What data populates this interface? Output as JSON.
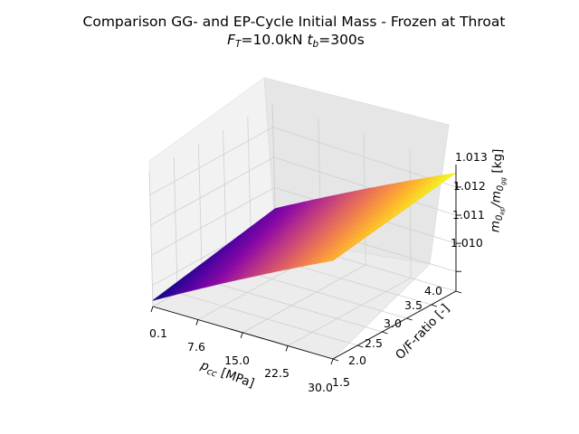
{
  "chart_data": {
    "type": "surface",
    "title": "Comparison GG- and EP-Cycle Initial Mass - Frozen at Throat",
    "subtitle": {
      "f_sym": "F",
      "f_sub": "T",
      "f_rest": "=10.0kN ",
      "t_sym": "t",
      "t_sub": "b",
      "t_rest": "=300s"
    },
    "xlabel": {
      "sym": "p",
      "sub": "cc",
      "unit": " [MPa]"
    },
    "ylabel": "O/F-ratio [-]",
    "zlabel": {
      "a": "m",
      "a_sub": "0",
      "a_subsub": "ep",
      "b": "/m",
      "b_sub": "0",
      "b_subsub": "gg",
      "unit": " [kg]"
    },
    "x_ticks": [
      "0.1",
      "7.6",
      "15.0",
      "22.5",
      "30.0"
    ],
    "y_ticks": [
      "1.5",
      "2.0",
      "2.5",
      "3.0",
      "3.5",
      "4.0"
    ],
    "z_ticks": [
      "1.010",
      "1.011",
      "1.012",
      "1.013"
    ],
    "xlim": [
      0.1,
      30.0
    ],
    "ylim": [
      1.5,
      4.0
    ],
    "zlim": [
      1.0093,
      1.0138
    ],
    "colormap": "plasma",
    "surface_corners": [
      {
        "x": 0.1,
        "y": 1.5,
        "z": 1.0095
      },
      {
        "x": 0.1,
        "y": 4.0,
        "z": 1.0103
      },
      {
        "x": 30.0,
        "y": 1.5,
        "z": 1.0128
      },
      {
        "x": 30.0,
        "y": 4.0,
        "z": 1.0135
      }
    ],
    "grid": true
  }
}
